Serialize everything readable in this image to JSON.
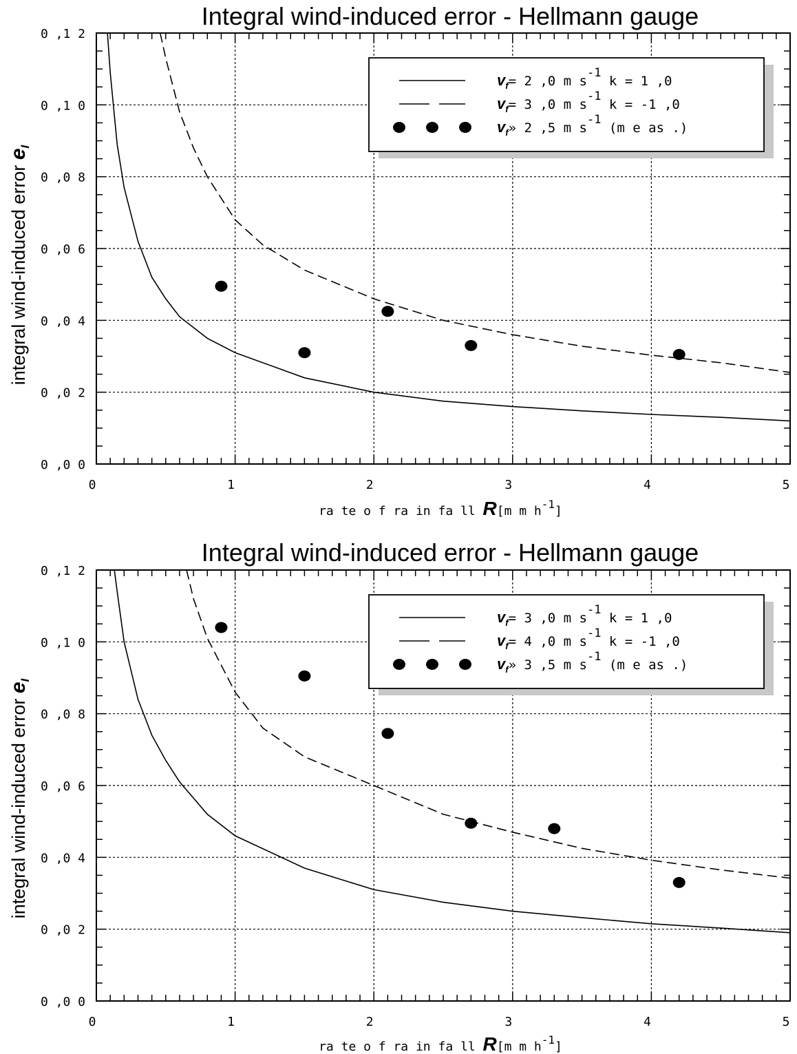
{
  "chart_data": [
    {
      "type": "line",
      "title": "Integral wind-induced error - Hellmann gauge",
      "ylabel": "integral wind-induced error",
      "ylabel_symbol": "e",
      "ylabel_subscript": "I",
      "xlabel": "ra te  o f ra in fa ll",
      "xlabel_symbol": "R",
      "xlabel_unit": "[m  m   h",
      "xlabel_unit_exp": "-1",
      "xlabel_unit_close": "]",
      "xlim": [
        0,
        5
      ],
      "ylim": [
        0,
        0.12
      ],
      "x_ticks": [
        0,
        1,
        2,
        3,
        4,
        5
      ],
      "x_tick_labels": [
        "0",
        "1",
        "2",
        "3",
        "4",
        "5"
      ],
      "y_ticks": [
        0,
        0.02,
        0.04,
        0.06,
        0.08,
        0.1,
        0.12
      ],
      "y_tick_labels": [
        "0 ,0 0",
        "0 ,0 2",
        "0 ,0 4",
        "0 ,0 6",
        "0 ,0 8",
        "0 ,1 0",
        "0 ,1 2"
      ],
      "grid": true,
      "legend_position": "top-right",
      "series": [
        {
          "name": "v_f = 2,0 m s^-1 k = 1,0",
          "legend": {
            "sym": "v",
            "sub": "f",
            "pre": "= 2 ,0  m   s",
            "exp": "-1",
            "post": "  k =  1 ,0"
          },
          "style": "solid",
          "x": [
            0.08,
            0.1,
            0.15,
            0.2,
            0.3,
            0.4,
            0.5,
            0.6,
            0.8,
            1.0,
            1.5,
            2.0,
            2.5,
            3.0,
            3.5,
            4.0,
            4.5,
            5.0
          ],
          "y": [
            0.12,
            0.109,
            0.089,
            0.077,
            0.062,
            0.052,
            0.046,
            0.041,
            0.035,
            0.031,
            0.024,
            0.02,
            0.0175,
            0.016,
            0.0148,
            0.0138,
            0.013,
            0.012
          ]
        },
        {
          "name": "v_f = 3,0 m s^-1 k = -1,0",
          "legend": {
            "sym": "v",
            "sub": "f",
            "pre": "= 3 ,0  m   s",
            "exp": "-1",
            "post": "  k = -1 ,0"
          },
          "style": "dashed",
          "x": [
            0.46,
            0.5,
            0.6,
            0.7,
            0.8,
            1.0,
            1.2,
            1.5,
            2.0,
            2.5,
            3.0,
            3.5,
            4.0,
            4.5,
            5.0
          ],
          "y": [
            0.12,
            0.113,
            0.098,
            0.088,
            0.08,
            0.068,
            0.061,
            0.054,
            0.046,
            0.04,
            0.036,
            0.0328,
            0.0303,
            0.0282,
            0.0255
          ]
        },
        {
          "name": "v_f » 2,5 m s^-1 (meas.)",
          "legend": {
            "sym": "v",
            "sub": "f",
            "pre": "» 2 ,5  m   s",
            "exp": "-1",
            "post": " (m e as .)"
          },
          "style": "markers",
          "x": [
            0.9,
            1.5,
            2.1,
            2.7,
            4.2
          ],
          "y": [
            0.0495,
            0.031,
            0.0425,
            0.033,
            0.0305
          ]
        }
      ]
    },
    {
      "type": "line",
      "title": "Integral wind-induced error - Hellmann gauge",
      "ylabel": "integral wind-induced error",
      "ylabel_symbol": "e",
      "ylabel_subscript": "I",
      "xlabel": "ra te  o f ra in fa ll",
      "xlabel_symbol": "R",
      "xlabel_unit": "[m  m   h",
      "xlabel_unit_exp": "-1",
      "xlabel_unit_close": "]",
      "xlim": [
        0,
        5
      ],
      "ylim": [
        0,
        0.12
      ],
      "x_ticks": [
        0,
        1,
        2,
        3,
        4,
        5
      ],
      "x_tick_labels": [
        "0",
        "1",
        "2",
        "3",
        "4",
        "5"
      ],
      "y_ticks": [
        0,
        0.02,
        0.04,
        0.06,
        0.08,
        0.1,
        0.12
      ],
      "y_tick_labels": [
        "0 ,0 0",
        "0 ,0 2",
        "0 ,0 4",
        "0 ,0 6",
        "0 ,0 8",
        "0 ,1 0",
        "0 ,1 2"
      ],
      "grid": true,
      "legend_position": "top-right",
      "series": [
        {
          "name": "v_f = 3,0 m s^-1 k = 1,0",
          "legend": {
            "sym": "v",
            "sub": "f",
            "pre": "= 3 ,0  m   s",
            "exp": "-1",
            "post": "  k =  1 ,0"
          },
          "style": "solid",
          "x": [
            0.13,
            0.15,
            0.2,
            0.3,
            0.4,
            0.5,
            0.6,
            0.8,
            1.0,
            1.5,
            2.0,
            2.5,
            3.0,
            3.5,
            4.0,
            4.5,
            5.0
          ],
          "y": [
            0.12,
            0.114,
            0.1,
            0.084,
            0.074,
            0.067,
            0.061,
            0.052,
            0.046,
            0.037,
            0.031,
            0.0275,
            0.025,
            0.0232,
            0.0215,
            0.0203,
            0.019
          ]
        },
        {
          "name": "v_f = 4,0 m s^-1 k = -1,0",
          "legend": {
            "sym": "v",
            "sub": "f",
            "pre": "= 4 ,0  m   s",
            "exp": "-1",
            "post": "  k = -1 ,0"
          },
          "style": "dashed",
          "x": [
            0.65,
            0.7,
            0.8,
            1.0,
            1.2,
            1.5,
            2.0,
            2.5,
            3.0,
            3.5,
            4.0,
            4.5,
            5.0
          ],
          "y": [
            0.12,
            0.112,
            0.101,
            0.086,
            0.076,
            0.068,
            0.06,
            0.052,
            0.047,
            0.0425,
            0.0392,
            0.0365,
            0.0342
          ]
        },
        {
          "name": "v_f » 3,5 m s^-1 (meas.)",
          "legend": {
            "sym": "v",
            "sub": "f",
            "pre": "» 3 ,5  m   s",
            "exp": "-1",
            "post": " (m e as .)"
          },
          "style": "markers",
          "x": [
            0.9,
            1.5,
            2.1,
            2.7,
            3.3,
            4.2
          ],
          "y": [
            0.104,
            0.0905,
            0.0745,
            0.0495,
            0.048,
            0.033
          ]
        }
      ]
    }
  ]
}
